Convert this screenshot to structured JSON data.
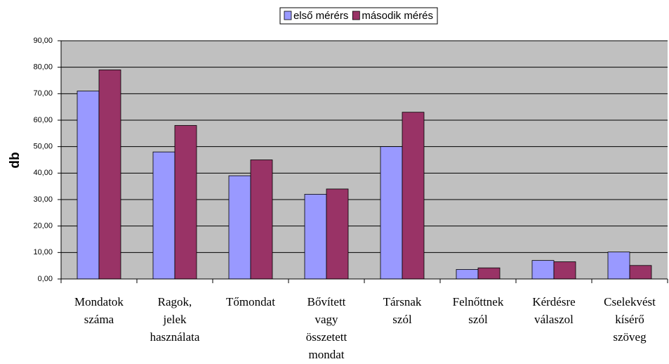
{
  "chart_data": {
    "type": "bar",
    "y_label": "db",
    "categories": [
      [
        "Mondatok",
        "száma"
      ],
      [
        "Ragok,",
        "jelek",
        "használata"
      ],
      [
        "Tőmondat"
      ],
      [
        "Bővített",
        "vagy",
        "összetett",
        "mondat"
      ],
      [
        "Társnak",
        "szól"
      ],
      [
        "Felnőttnek",
        "szól"
      ],
      [
        "Kérdésre",
        "válaszol"
      ],
      [
        "Cselekvést",
        "kísérő",
        "szöveg"
      ]
    ],
    "series": [
      {
        "name": "első mérérs",
        "color": "#9999ff",
        "values": [
          71,
          48,
          39,
          32,
          50,
          3.6,
          7,
          10.2
        ]
      },
      {
        "name": "második mérés",
        "color": "#993366",
        "values": [
          79,
          58,
          45,
          34,
          63,
          4.2,
          6.5,
          5.1
        ]
      }
    ],
    "ylim": [
      0,
      90
    ],
    "yticks": [
      {
        "value": 0,
        "label": "0,00"
      },
      {
        "value": 10,
        "label": "10,00"
      },
      {
        "value": 20,
        "label": "20,00"
      },
      {
        "value": 30,
        "label": "30,00"
      },
      {
        "value": 40,
        "label": "40,00"
      },
      {
        "value": 50,
        "label": "50,00"
      },
      {
        "value": 60,
        "label": "60,00"
      },
      {
        "value": 70,
        "label": "70,00"
      },
      {
        "value": 80,
        "label": "80,00"
      },
      {
        "value": 90,
        "label": "90,00"
      }
    ],
    "grid": true,
    "plot_background": "#c0c0c0",
    "legend": "top"
  }
}
